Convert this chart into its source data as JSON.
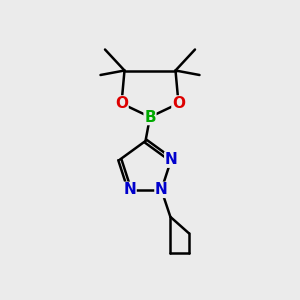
{
  "background_color": "#ebebeb",
  "bond_color": "#000000",
  "bond_width": 1.8,
  "atom_colors": {
    "C": "#000000",
    "N": "#0000cc",
    "O": "#dd0000",
    "B": "#00aa00"
  },
  "font_size": 11,
  "figsize": [
    3.0,
    3.0
  ],
  "dpi": 100,
  "xlim": [
    0,
    10
  ],
  "ylim": [
    0,
    10
  ]
}
